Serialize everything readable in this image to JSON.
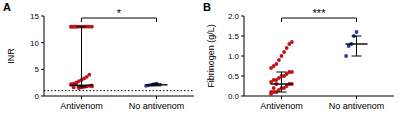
{
  "chart_data": [
    {
      "type": "scatter",
      "title": "A",
      "y_label": "INR",
      "categories": [
        "Antivenom",
        "No antivenom"
      ],
      "values": [
        [
          13,
          13,
          13,
          13,
          13,
          13,
          13,
          13,
          13,
          13,
          13,
          13,
          1.5,
          1.6,
          1.7,
          1.8,
          1.9,
          2.0,
          2.1,
          2.3,
          2.5,
          2.8,
          3.0,
          3.3,
          3.6,
          4.0,
          1.8,
          2.2,
          1.6,
          2.4
        ],
        [
          1.9,
          2.0,
          2.1,
          2.2,
          2.3
        ]
      ],
      "colors": [
        "#c0141b",
        "#2b3a9e"
      ],
      "summary": {
        "center": [
          2.0,
          2.1
        ],
        "low": [
          1.7,
          1.9
        ],
        "high": [
          13,
          2.3
        ]
      },
      "reference_line": 1,
      "annotation": "*",
      "ylim": [
        0,
        15
      ],
      "yticks": [
        0,
        5,
        10,
        15
      ]
    },
    {
      "type": "scatter",
      "title": "B",
      "y_label": "Fibrinogen (g/L)",
      "categories": [
        "Antivenom",
        "No antivenom"
      ],
      "values": [
        [
          0.05,
          0.1,
          0.1,
          0.15,
          0.2,
          0.2,
          0.25,
          0.3,
          0.3,
          0.35,
          0.4,
          0.4,
          0.45,
          0.5,
          0.5,
          0.55,
          0.6,
          0.6,
          0.7,
          0.75,
          0.8,
          0.9,
          1.0,
          1.1,
          1.2,
          1.3,
          1.35,
          0.1,
          0.2,
          0.3
        ],
        [
          1.0,
          1.25,
          1.3,
          1.5,
          1.6
        ]
      ],
      "colors": [
        "#c0141b",
        "#2b3a9e"
      ],
      "summary": {
        "center": [
          0.3,
          1.3
        ],
        "low": [
          0.1,
          1.0
        ],
        "high": [
          0.6,
          1.5
        ]
      },
      "annotation": "***",
      "ylim": [
        0,
        2
      ],
      "yticks": [
        {
          "value": 0,
          "label": "0.0"
        },
        {
          "value": 0.5,
          "label": "0.5"
        },
        {
          "value": 1,
          "label": "1.0"
        },
        {
          "value": 1.5,
          "label": "1.5"
        },
        {
          "value": 2,
          "label": "2.0"
        }
      ]
    }
  ]
}
